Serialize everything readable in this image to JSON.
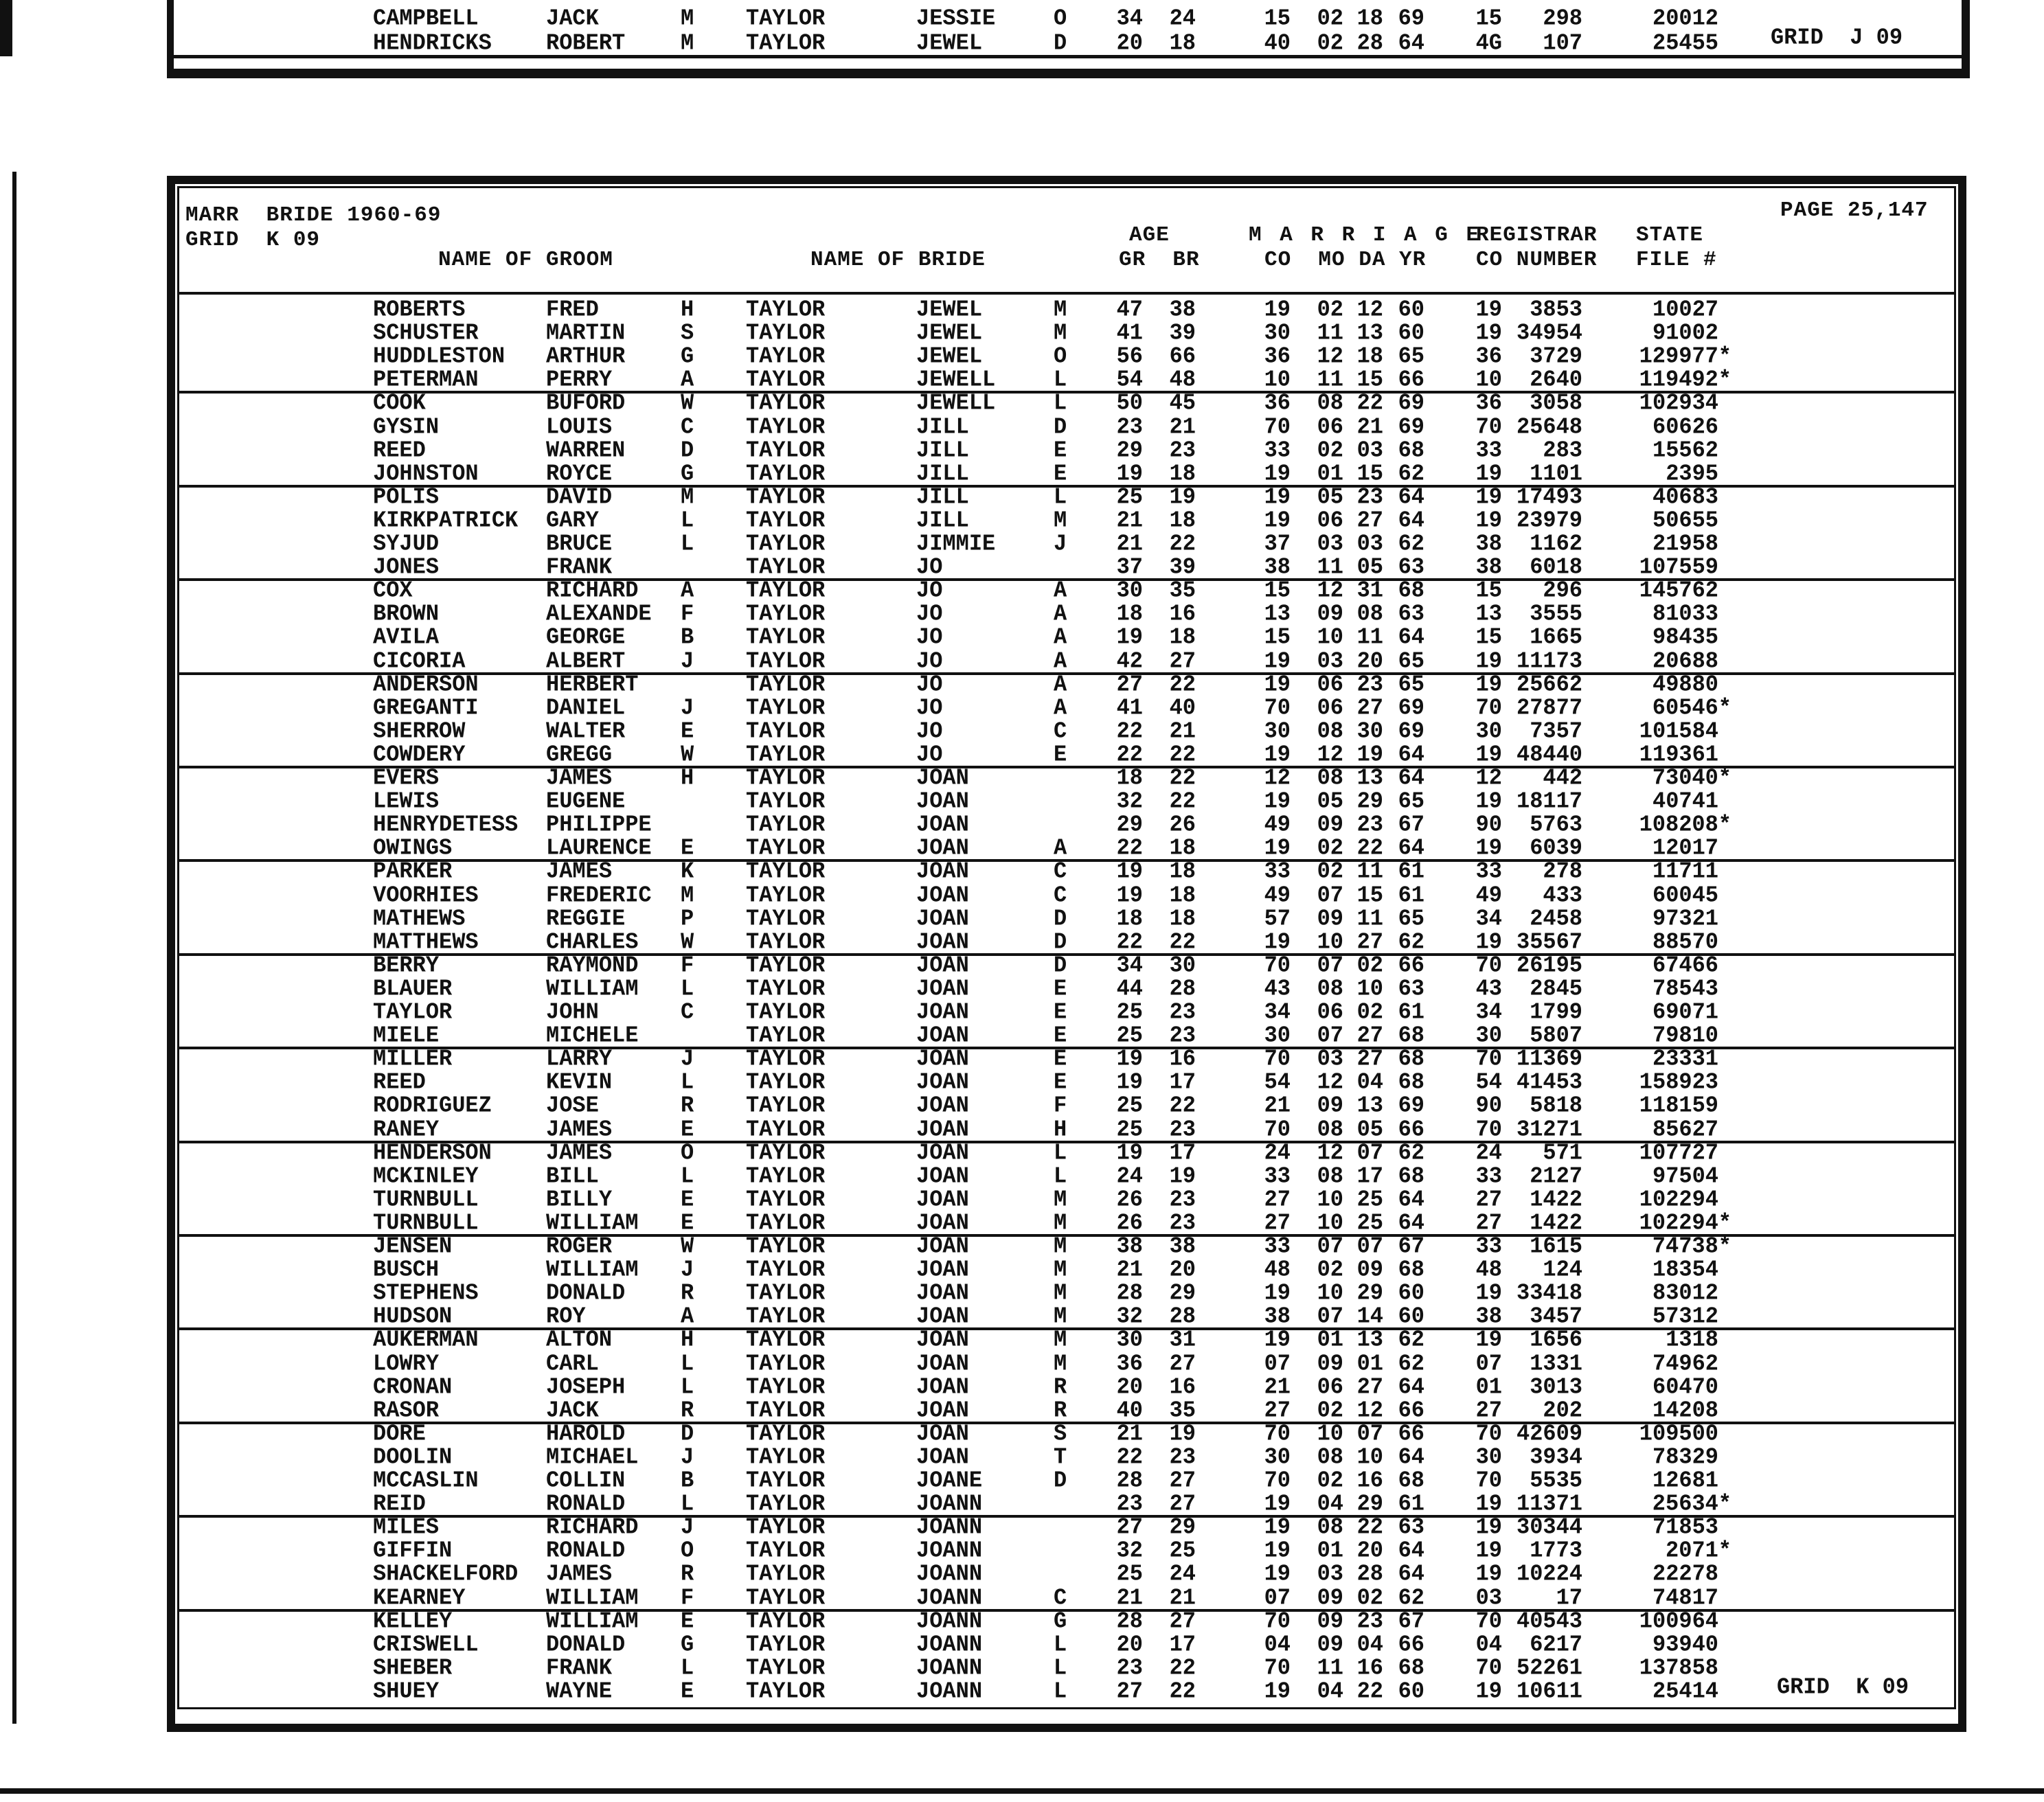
{
  "previous_section": {
    "rows": [
      [
        "CAMPBELL",
        "JACK",
        "M",
        "TAYLOR",
        "JESSIE",
        "O",
        "34",
        "24",
        "15",
        "02",
        "18",
        "69",
        "15",
        "298",
        "20012"
      ],
      [
        "HENDRICKS",
        "ROBERT",
        "M",
        "TAYLOR",
        "JEWEL",
        "D",
        "20",
        "18",
        "40",
        "02",
        "28",
        "64",
        "4G",
        "107",
        "25455"
      ]
    ],
    "grid_label": "GRID  J 09"
  },
  "header": {
    "title": "MARR  BRIDE 1960-69",
    "grid": "GRID  K 09",
    "page": "PAGE 25,147",
    "col_age": "AGE",
    "col_marriage": "M A R R I A G E",
    "col_registrar": "REGISTRAR",
    "col_state": "STATE",
    "col_groom": "NAME OF GROOM",
    "col_bride": "NAME OF BRIDE",
    "col_gr_br": "GR  BR",
    "col_co_mo_da_yr": "CO  MO DA YR",
    "col_co_number": "CO NUMBER",
    "col_file": "FILE #"
  },
  "columns": [
    "groom_last",
    "groom_first",
    "groom_mi",
    "bride_last",
    "bride_first",
    "bride_mi",
    "age_gr",
    "age_br",
    "marr_co",
    "marr_mo",
    "marr_da",
    "marr_yr",
    "reg_co",
    "reg_number",
    "state_file"
  ],
  "rows": [
    [
      "ROBERTS",
      "FRED",
      "H",
      "TAYLOR",
      "JEWEL",
      "M",
      "47",
      "38",
      "19",
      "02",
      "12",
      "60",
      "19",
      "3853",
      "10027"
    ],
    [
      "SCHUSTER",
      "MARTIN",
      "S",
      "TAYLOR",
      "JEWEL",
      "M",
      "41",
      "39",
      "30",
      "11",
      "13",
      "60",
      "19",
      "34954",
      "91002"
    ],
    [
      "HUDDLESTON",
      "ARTHUR",
      "G",
      "TAYLOR",
      "JEWEL",
      "O",
      "56",
      "66",
      "36",
      "12",
      "18",
      "65",
      "36",
      "3729",
      "129977*"
    ],
    [
      "PETERMAN",
      "PERRY",
      "A",
      "TAYLOR",
      "JEWELL",
      "L",
      "54",
      "48",
      "10",
      "11",
      "15",
      "66",
      "10",
      "2640",
      "119492*"
    ],
    [
      "COOK",
      "BUFORD",
      "W",
      "TAYLOR",
      "JEWELL",
      "L",
      "50",
      "45",
      "36",
      "08",
      "22",
      "69",
      "36",
      "3058",
      "102934"
    ],
    [
      "GYSIN",
      "LOUIS",
      "C",
      "TAYLOR",
      "JILL",
      "D",
      "23",
      "21",
      "70",
      "06",
      "21",
      "69",
      "70",
      "25648",
      "60626"
    ],
    [
      "REED",
      "WARREN",
      "D",
      "TAYLOR",
      "JILL",
      "E",
      "29",
      "23",
      "33",
      "02",
      "03",
      "68",
      "33",
      "283",
      "15562"
    ],
    [
      "JOHNSTON",
      "ROYCE",
      "G",
      "TAYLOR",
      "JILL",
      "E",
      "19",
      "18",
      "19",
      "01",
      "15",
      "62",
      "19",
      "1101",
      "2395"
    ],
    [
      "POLIS",
      "DAVID",
      "M",
      "TAYLOR",
      "JILL",
      "L",
      "25",
      "19",
      "19",
      "05",
      "23",
      "64",
      "19",
      "17493",
      "40683"
    ],
    [
      "KIRKPATRICK",
      "GARY",
      "L",
      "TAYLOR",
      "JILL",
      "M",
      "21",
      "18",
      "19",
      "06",
      "27",
      "64",
      "19",
      "23979",
      "50655"
    ],
    [
      "SYJUD",
      "BRUCE",
      "L",
      "TAYLOR",
      "JIMMIE",
      "J",
      "21",
      "22",
      "37",
      "03",
      "03",
      "62",
      "38",
      "1162",
      "21958"
    ],
    [
      "JONES",
      "FRANK",
      "",
      "TAYLOR",
      "JO",
      "",
      "37",
      "39",
      "38",
      "11",
      "05",
      "63",
      "38",
      "6018",
      "107559"
    ],
    [
      "COX",
      "RICHARD",
      "A",
      "TAYLOR",
      "JO",
      "A",
      "30",
      "35",
      "15",
      "12",
      "31",
      "68",
      "15",
      "296",
      "145762"
    ],
    [
      "BROWN",
      "ALEXANDE",
      "F",
      "TAYLOR",
      "JO",
      "A",
      "18",
      "16",
      "13",
      "09",
      "08",
      "63",
      "13",
      "3555",
      "81033"
    ],
    [
      "AVILA",
      "GEORGE",
      "B",
      "TAYLOR",
      "JO",
      "A",
      "19",
      "18",
      "15",
      "10",
      "11",
      "64",
      "15",
      "1665",
      "98435"
    ],
    [
      "CICORIA",
      "ALBERT",
      "J",
      "TAYLOR",
      "JO",
      "A",
      "42",
      "27",
      "19",
      "03",
      "20",
      "65",
      "19",
      "11173",
      "20688"
    ],
    [
      "ANDERSON",
      "HERBERT",
      "",
      "TAYLOR",
      "JO",
      "A",
      "27",
      "22",
      "19",
      "06",
      "23",
      "65",
      "19",
      "25662",
      "49880"
    ],
    [
      "GREGANTI",
      "DANIEL",
      "J",
      "TAYLOR",
      "JO",
      "A",
      "41",
      "40",
      "70",
      "06",
      "27",
      "69",
      "70",
      "27877",
      "60546*"
    ],
    [
      "SHERROW",
      "WALTER",
      "E",
      "TAYLOR",
      "JO",
      "C",
      "22",
      "21",
      "30",
      "08",
      "30",
      "69",
      "30",
      "7357",
      "101584"
    ],
    [
      "COWDERY",
      "GREGG",
      "W",
      "TAYLOR",
      "JO",
      "E",
      "22",
      "22",
      "19",
      "12",
      "19",
      "64",
      "19",
      "48440",
      "119361"
    ],
    [
      "EVERS",
      "JAMES",
      "H",
      "TAYLOR",
      "JOAN",
      "",
      "18",
      "22",
      "12",
      "08",
      "13",
      "64",
      "12",
      "442",
      "73040*"
    ],
    [
      "LEWIS",
      "EUGENE",
      "",
      "TAYLOR",
      "JOAN",
      "",
      "32",
      "22",
      "19",
      "05",
      "29",
      "65",
      "19",
      "18117",
      "40741"
    ],
    [
      "HENRYDETESS",
      "PHILIPPE",
      "",
      "TAYLOR",
      "JOAN",
      "",
      "29",
      "26",
      "49",
      "09",
      "23",
      "67",
      "90",
      "5763",
      "108208*"
    ],
    [
      "OWINGS",
      "LAURENCE",
      "E",
      "TAYLOR",
      "JOAN",
      "A",
      "22",
      "18",
      "19",
      "02",
      "22",
      "64",
      "19",
      "6039",
      "12017"
    ],
    [
      "PARKER",
      "JAMES",
      "K",
      "TAYLOR",
      "JOAN",
      "C",
      "19",
      "18",
      "33",
      "02",
      "11",
      "61",
      "33",
      "278",
      "11711"
    ],
    [
      "VOORHIES",
      "FREDERIC",
      "M",
      "TAYLOR",
      "JOAN",
      "C",
      "19",
      "18",
      "49",
      "07",
      "15",
      "61",
      "49",
      "433",
      "60045"
    ],
    [
      "MATHEWS",
      "REGGIE",
      "P",
      "TAYLOR",
      "JOAN",
      "D",
      "18",
      "18",
      "57",
      "09",
      "11",
      "65",
      "34",
      "2458",
      "97321"
    ],
    [
      "MATTHEWS",
      "CHARLES",
      "W",
      "TAYLOR",
      "JOAN",
      "D",
      "22",
      "22",
      "19",
      "10",
      "27",
      "62",
      "19",
      "35567",
      "88570"
    ],
    [
      "BERRY",
      "RAYMOND",
      "F",
      "TAYLOR",
      "JOAN",
      "D",
      "34",
      "30",
      "70",
      "07",
      "02",
      "66",
      "70",
      "26195",
      "67466"
    ],
    [
      "BLAUER",
      "WILLIAM",
      "L",
      "TAYLOR",
      "JOAN",
      "E",
      "44",
      "28",
      "43",
      "08",
      "10",
      "63",
      "43",
      "2845",
      "78543"
    ],
    [
      "TAYLOR",
      "JOHN",
      "C",
      "TAYLOR",
      "JOAN",
      "E",
      "25",
      "23",
      "34",
      "06",
      "02",
      "61",
      "34",
      "1799",
      "69071"
    ],
    [
      "MIELE",
      "MICHELE",
      "",
      "TAYLOR",
      "JOAN",
      "E",
      "25",
      "23",
      "30",
      "07",
      "27",
      "68",
      "30",
      "5807",
      "79810"
    ],
    [
      "MILLER",
      "LARRY",
      "J",
      "TAYLOR",
      "JOAN",
      "E",
      "19",
      "16",
      "70",
      "03",
      "27",
      "68",
      "70",
      "11369",
      "23331"
    ],
    [
      "REED",
      "KEVIN",
      "L",
      "TAYLOR",
      "JOAN",
      "E",
      "19",
      "17",
      "54",
      "12",
      "04",
      "68",
      "54",
      "41453",
      "158923"
    ],
    [
      "RODRIGUEZ",
      "JOSE",
      "R",
      "TAYLOR",
      "JOAN",
      "F",
      "25",
      "22",
      "21",
      "09",
      "13",
      "69",
      "90",
      "5818",
      "118159"
    ],
    [
      "RANEY",
      "JAMES",
      "E",
      "TAYLOR",
      "JOAN",
      "H",
      "25",
      "23",
      "70",
      "08",
      "05",
      "66",
      "70",
      "31271",
      "85627"
    ],
    [
      "HENDERSON",
      "JAMES",
      "O",
      "TAYLOR",
      "JOAN",
      "L",
      "19",
      "17",
      "24",
      "12",
      "07",
      "62",
      "24",
      "571",
      "107727"
    ],
    [
      "MCKINLEY",
      "BILL",
      "L",
      "TAYLOR",
      "JOAN",
      "L",
      "24",
      "19",
      "33",
      "08",
      "17",
      "68",
      "33",
      "2127",
      "97504"
    ],
    [
      "TURNBULL",
      "BILLY",
      "E",
      "TAYLOR",
      "JOAN",
      "M",
      "26",
      "23",
      "27",
      "10",
      "25",
      "64",
      "27",
      "1422",
      "102294"
    ],
    [
      "TURNBULL",
      "WILLIAM",
      "E",
      "TAYLOR",
      "JOAN",
      "M",
      "26",
      "23",
      "27",
      "10",
      "25",
      "64",
      "27",
      "1422",
      "102294*"
    ],
    [
      "JENSEN",
      "ROGER",
      "W",
      "TAYLOR",
      "JOAN",
      "M",
      "38",
      "38",
      "33",
      "07",
      "07",
      "67",
      "33",
      "1615",
      "74738*"
    ],
    [
      "BUSCH",
      "WILLIAM",
      "J",
      "TAYLOR",
      "JOAN",
      "M",
      "21",
      "20",
      "48",
      "02",
      "09",
      "68",
      "48",
      "124",
      "18354"
    ],
    [
      "STEPHENS",
      "DONALD",
      "R",
      "TAYLOR",
      "JOAN",
      "M",
      "28",
      "29",
      "19",
      "10",
      "29",
      "60",
      "19",
      "33418",
      "83012"
    ],
    [
      "HUDSON",
      "ROY",
      "A",
      "TAYLOR",
      "JOAN",
      "M",
      "32",
      "28",
      "38",
      "07",
      "14",
      "60",
      "38",
      "3457",
      "57312"
    ],
    [
      "AUKERMAN",
      "ALTON",
      "H",
      "TAYLOR",
      "JOAN",
      "M",
      "30",
      "31",
      "19",
      "01",
      "13",
      "62",
      "19",
      "1656",
      "1318"
    ],
    [
      "LOWRY",
      "CARL",
      "L",
      "TAYLOR",
      "JOAN",
      "M",
      "36",
      "27",
      "07",
      "09",
      "01",
      "62",
      "07",
      "1331",
      "74962"
    ],
    [
      "CRONAN",
      "JOSEPH",
      "L",
      "TAYLOR",
      "JOAN",
      "R",
      "20",
      "16",
      "21",
      "06",
      "27",
      "64",
      "01",
      "3013",
      "60470"
    ],
    [
      "RASOR",
      "JACK",
      "R",
      "TAYLOR",
      "JOAN",
      "R",
      "40",
      "35",
      "27",
      "02",
      "12",
      "66",
      "27",
      "202",
      "14208"
    ],
    [
      "DORE",
      "HAROLD",
      "D",
      "TAYLOR",
      "JOAN",
      "S",
      "21",
      "19",
      "70",
      "10",
      "07",
      "66",
      "70",
      "42609",
      "109500"
    ],
    [
      "DOOLIN",
      "MICHAEL",
      "J",
      "TAYLOR",
      "JOAN",
      "T",
      "22",
      "23",
      "30",
      "08",
      "10",
      "64",
      "30",
      "3934",
      "78329"
    ],
    [
      "MCCASLIN",
      "COLLIN",
      "B",
      "TAYLOR",
      "JOANE",
      "D",
      "28",
      "27",
      "70",
      "02",
      "16",
      "68",
      "70",
      "5535",
      "12681"
    ],
    [
      "REID",
      "RONALD",
      "L",
      "TAYLOR",
      "JOANN",
      "",
      "23",
      "27",
      "19",
      "04",
      "29",
      "61",
      "19",
      "11371",
      "25634*"
    ],
    [
      "MILES",
      "RICHARD",
      "J",
      "TAYLOR",
      "JOANN",
      "",
      "27",
      "29",
      "19",
      "08",
      "22",
      "63",
      "19",
      "30344",
      "71853"
    ],
    [
      "GIFFIN",
      "RONALD",
      "O",
      "TAYLOR",
      "JOANN",
      "",
      "32",
      "25",
      "19",
      "01",
      "20",
      "64",
      "19",
      "1773",
      "2071*"
    ],
    [
      "SHACKELFORD",
      "JAMES",
      "R",
      "TAYLOR",
      "JOANN",
      "",
      "25",
      "24",
      "19",
      "03",
      "28",
      "64",
      "19",
      "10224",
      "22278"
    ],
    [
      "KEARNEY",
      "WILLIAM",
      "F",
      "TAYLOR",
      "JOANN",
      "C",
      "21",
      "21",
      "07",
      "09",
      "02",
      "62",
      "03",
      "17",
      "74817"
    ],
    [
      "KELLEY",
      "WILLIAM",
      "E",
      "TAYLOR",
      "JOANN",
      "G",
      "28",
      "27",
      "70",
      "09",
      "23",
      "67",
      "70",
      "40543",
      "100964"
    ],
    [
      "CRISWELL",
      "DONALD",
      "G",
      "TAYLOR",
      "JOANN",
      "L",
      "20",
      "17",
      "04",
      "09",
      "04",
      "66",
      "04",
      "6217",
      "93940"
    ],
    [
      "SHEBER",
      "FRANK",
      "L",
      "TAYLOR",
      "JOANN",
      "L",
      "23",
      "22",
      "70",
      "11",
      "16",
      "68",
      "70",
      "52261",
      "137858"
    ],
    [
      "SHUEY",
      "WAYNE",
      "E",
      "TAYLOR",
      "JOANN",
      "L",
      "27",
      "22",
      "19",
      "04",
      "22",
      "60",
      "19",
      "10611",
      "25414"
    ]
  ],
  "footer": {
    "grid_label": "GRID  K 09"
  }
}
